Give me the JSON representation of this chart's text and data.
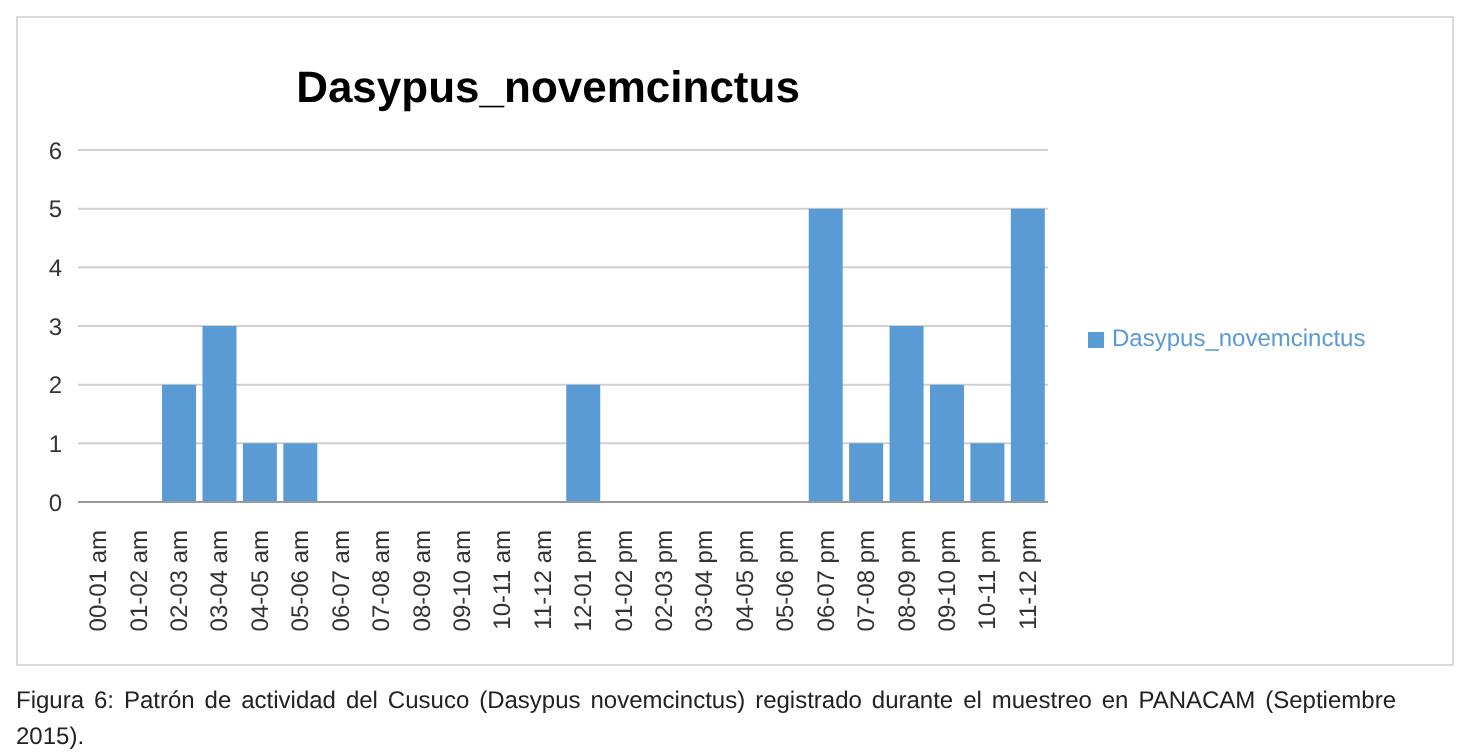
{
  "chart_data": {
    "type": "bar",
    "title": "Dasypus_novemcinctus",
    "categories": [
      "00-01 am",
      "01-02 am",
      "02-03 am",
      "03-04 am",
      "04-05 am",
      "05-06 am",
      "06-07 am",
      "07-08 am",
      "08-09 am",
      "09-10 am",
      "10-11 am",
      "11-12 am",
      "12-01 pm",
      "01-02 pm",
      "02-03 pm",
      "03-04 pm",
      "04-05 pm",
      "05-06 pm",
      "06-07 pm",
      "07-08 pm",
      "08-09 pm",
      "09-10 pm",
      "10-11 pm",
      "11-12 pm"
    ],
    "series": [
      {
        "name": "Dasypus_novemcinctus",
        "color": "#5b9bd5",
        "values": [
          0,
          0,
          2,
          3,
          1,
          1,
          0,
          0,
          0,
          0,
          0,
          0,
          2,
          0,
          0,
          0,
          0,
          0,
          5,
          1,
          3,
          2,
          1,
          5
        ]
      }
    ],
    "ylim": [
      0,
      6
    ],
    "yticks": [
      0,
      1,
      2,
      3,
      4,
      5,
      6
    ],
    "grid": "y",
    "legend": "right",
    "annotations": [
      "Figura 6: Patrón de actividad del Cusuco (Dasypus novemcinctus) registrado durante el muestreo en PANACAM (Septiembre 2015)."
    ]
  }
}
